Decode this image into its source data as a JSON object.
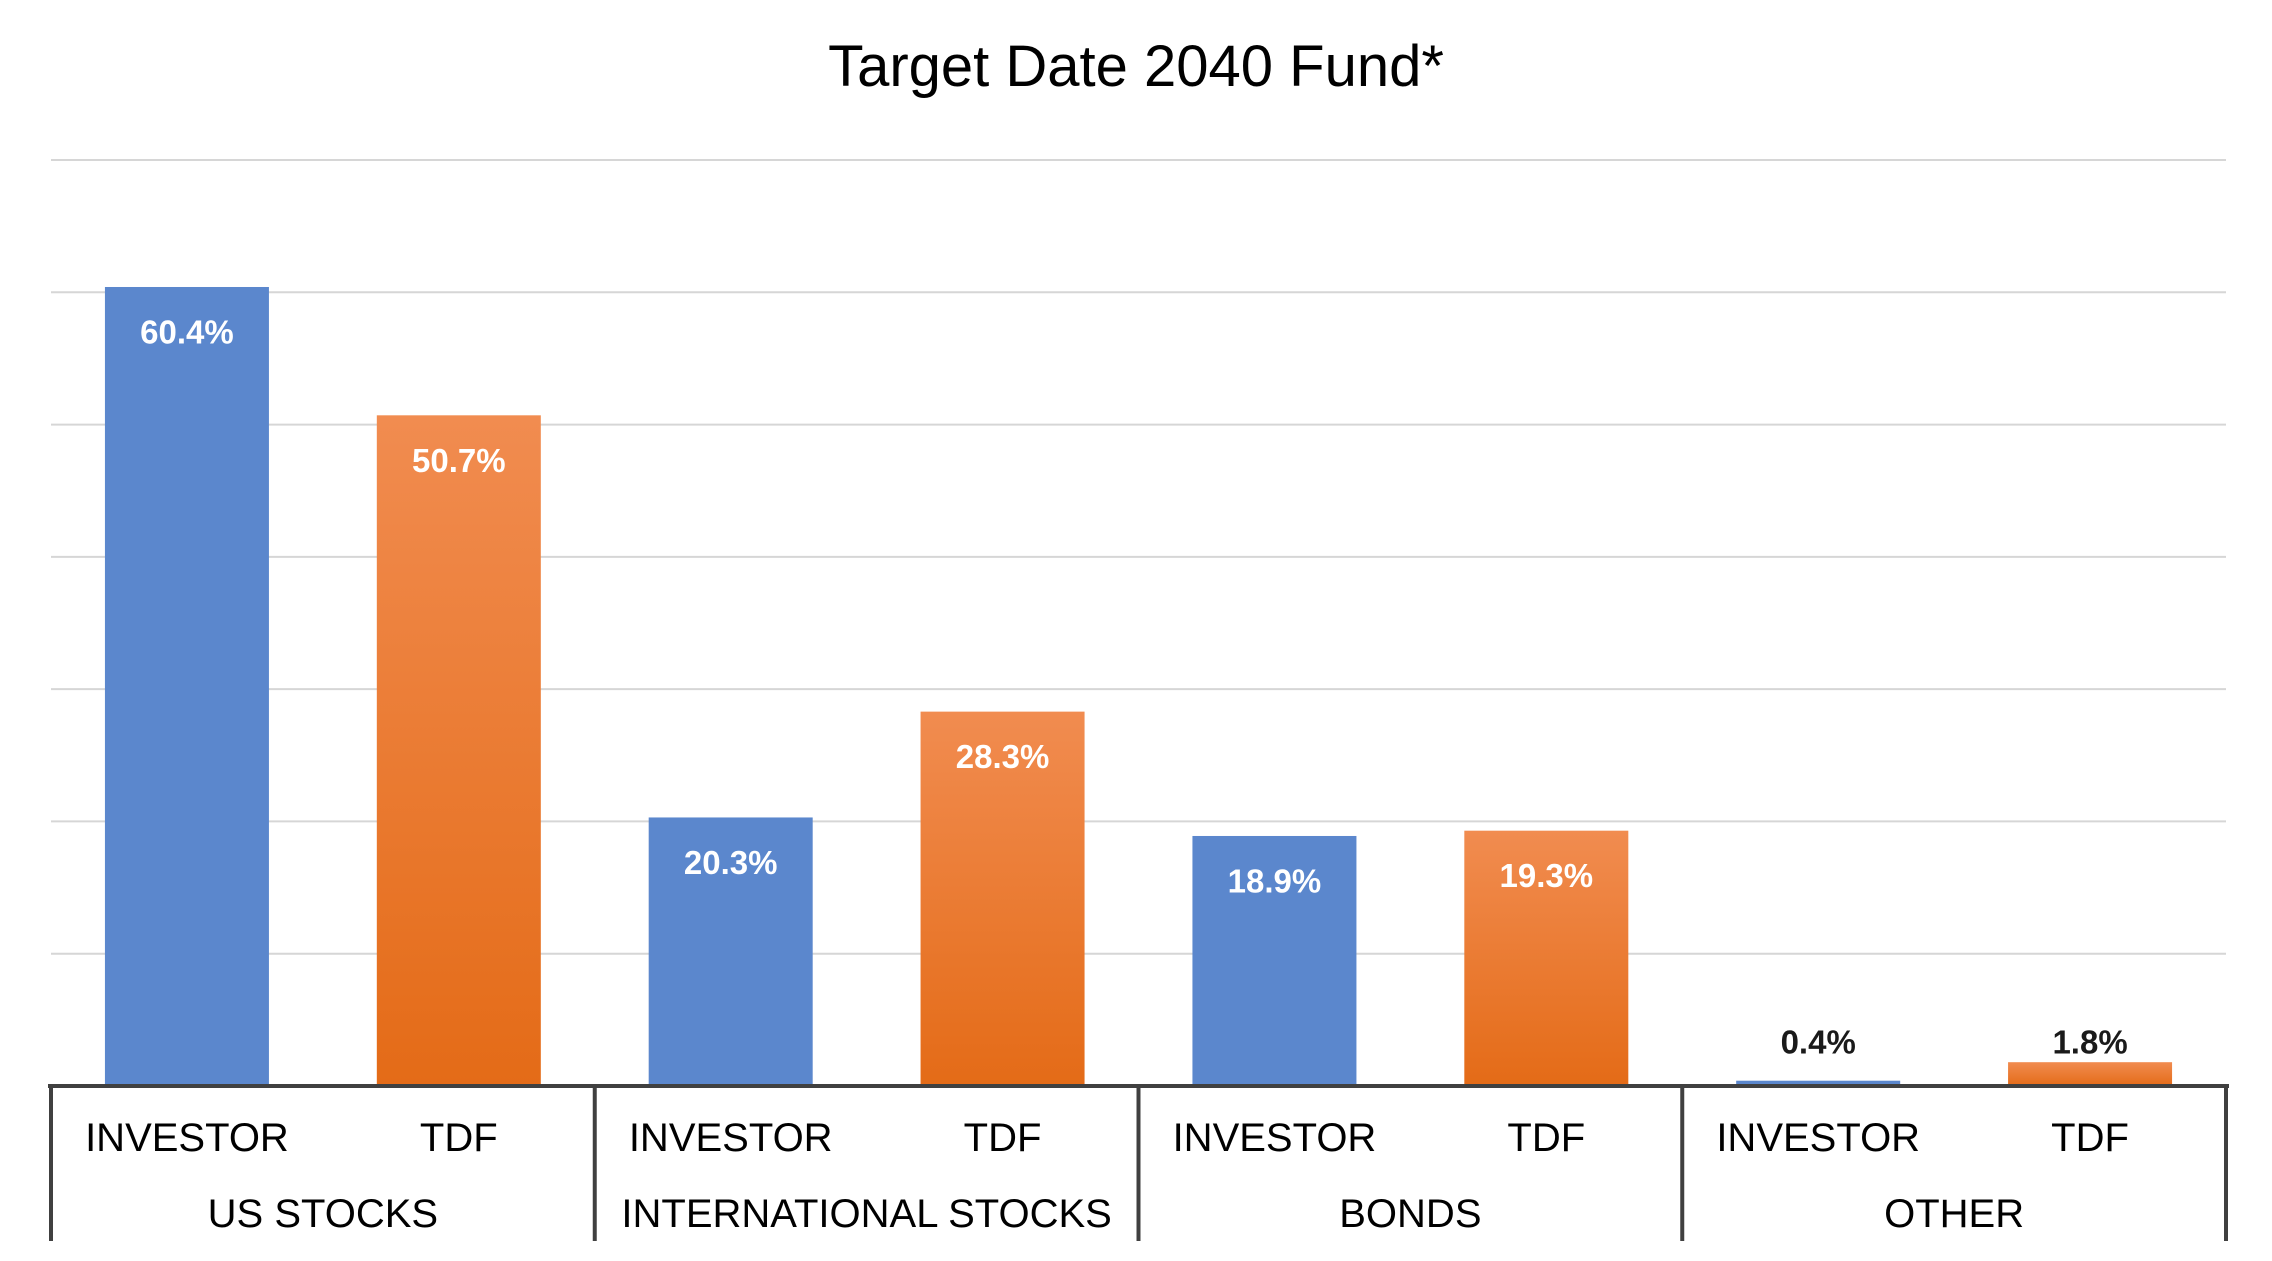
{
  "chart_data": {
    "type": "bar",
    "title": "Target Date 2040 Fund*",
    "groups": [
      "US STOCKS",
      "INTERNATIONAL STOCKS",
      "BONDS",
      "OTHER"
    ],
    "series": [
      {
        "name": "INVESTOR",
        "values": [
          60.4,
          20.3,
          18.9,
          0.4
        ],
        "labels": [
          "60.4%",
          "20.3%",
          "18.9%",
          "0.4%"
        ],
        "color": "#5b87cd"
      },
      {
        "name": "TDF",
        "values": [
          50.7,
          28.3,
          19.3,
          1.8
        ],
        "labels": [
          "50.7%",
          "28.3%",
          "19.3%",
          "1.8%"
        ],
        "color": "#ed7d31",
        "gradient": [
          "#f18c50",
          "#e46b17"
        ]
      }
    ],
    "ylim": [
      0,
      70
    ],
    "y_major_unit": 10,
    "grid": true
  }
}
